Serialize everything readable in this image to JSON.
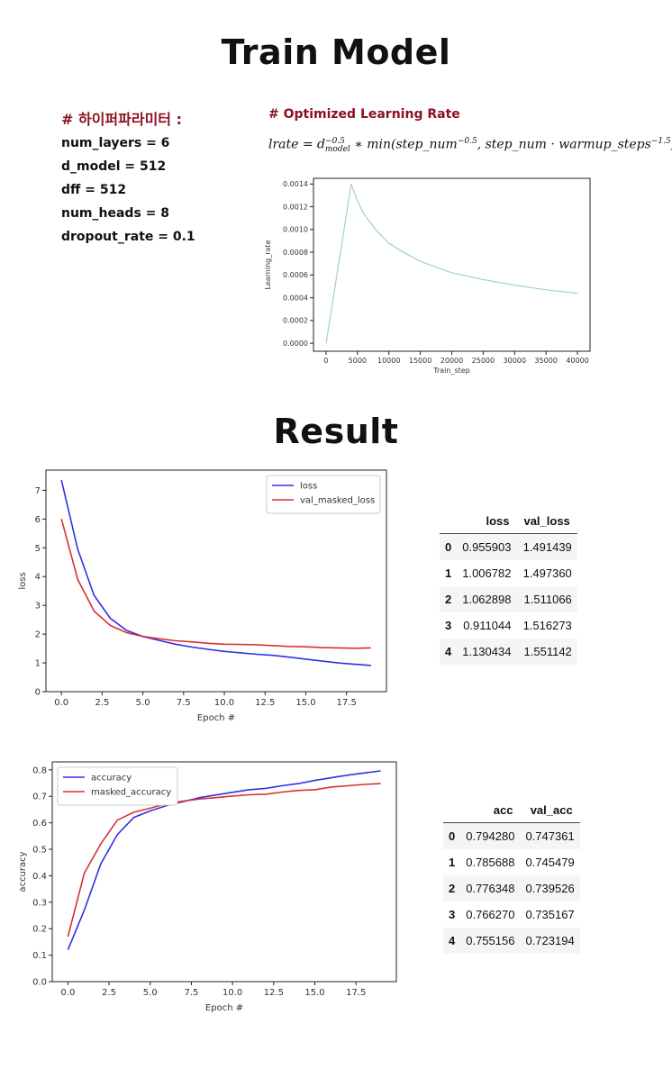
{
  "titles": {
    "train": "Train Model",
    "result": "Result"
  },
  "hyper": {
    "title": "# 하이퍼파라미터 :",
    "items": [
      "num_layers = 6",
      "d_model = 512",
      "dff = 512",
      "num_heads = 8",
      "dropout_rate = 0.1"
    ]
  },
  "lr": {
    "title": "# Optimized Learning Rate",
    "formula": {
      "lhs": "lrate = d",
      "sup1": "−0.5",
      "sub1": "model",
      "mid": " ∗ min(step_num",
      "sup2": "−0.5",
      "mid2": ", step_num · warmup_steps",
      "sup3": "−1.5",
      "end": ")"
    }
  },
  "loss_table": {
    "columns": [
      "loss",
      "val_loss"
    ],
    "rows": [
      {
        "idx": "0",
        "a": "0.955903",
        "b": "1.491439"
      },
      {
        "idx": "1",
        "a": "1.006782",
        "b": "1.497360"
      },
      {
        "idx": "2",
        "a": "1.062898",
        "b": "1.511066"
      },
      {
        "idx": "3",
        "a": "0.911044",
        "b": "1.516273"
      },
      {
        "idx": "4",
        "a": "1.130434",
        "b": "1.551142"
      }
    ]
  },
  "acc_table": {
    "columns": [
      "acc",
      "val_acc"
    ],
    "rows": [
      {
        "idx": "0",
        "a": "0.794280",
        "b": "0.747361"
      },
      {
        "idx": "1",
        "a": "0.785688",
        "b": "0.745479"
      },
      {
        "idx": "2",
        "a": "0.776348",
        "b": "0.739526"
      },
      {
        "idx": "3",
        "a": "0.766270",
        "b": "0.735167"
      },
      {
        "idx": "4",
        "a": "0.755156",
        "b": "0.723194"
      }
    ]
  },
  "colors": {
    "blue": "#3030e8",
    "red": "#d93030",
    "lr": "#9fd3c1",
    "heading": "#8b1020"
  },
  "chart_data": [
    {
      "id": "lr",
      "type": "line",
      "xlabel": "Train_step",
      "ylabel": "Learning_rate",
      "xlim": [
        -2000,
        42000
      ],
      "ylim": [
        -7e-05,
        0.00145
      ],
      "xticks": [
        0,
        5000,
        10000,
        15000,
        20000,
        25000,
        30000,
        35000,
        40000
      ],
      "xtick_labels": [
        "0",
        "5000",
        "10000",
        "15000",
        "20000",
        "25000",
        "30000",
        "35000",
        "40000"
      ],
      "yticks": [
        0,
        0.0002,
        0.0004,
        0.0006,
        0.0008,
        0.001,
        0.0012,
        0.0014
      ],
      "ytick_labels": [
        "0.0000",
        "0.0002",
        "0.0004",
        "0.0006",
        "0.0008",
        "0.0010",
        "0.0012",
        "0.0014"
      ],
      "grid": false,
      "series": [
        {
          "color": "#9fd3c1",
          "x": [
            0,
            4000,
            5000,
            6000,
            8000,
            10000,
            12000,
            15000,
            18000,
            20000,
            25000,
            30000,
            35000,
            40000
          ],
          "y": [
            0.0,
            0.0014,
            0.00125,
            0.00114,
            0.00099,
            0.00088,
            0.00081,
            0.00072,
            0.00066,
            0.00062,
            0.00056,
            0.00051,
            0.00047,
            0.00044
          ]
        }
      ]
    },
    {
      "id": "loss",
      "type": "line",
      "xlabel": "Epoch #",
      "ylabel": "loss",
      "xlim": [
        -0.95,
        19.95
      ],
      "ylim": [
        0,
        7.7
      ],
      "xticks": [
        0,
        2.5,
        5,
        7.5,
        10,
        12.5,
        15,
        17.5
      ],
      "xtick_labels": [
        "0.0",
        "2.5",
        "5.0",
        "7.5",
        "10.0",
        "12.5",
        "15.0",
        "17.5"
      ],
      "yticks": [
        0,
        1,
        2,
        3,
        4,
        5,
        6,
        7
      ],
      "ytick_labels": [
        "0",
        "1",
        "2",
        "3",
        "4",
        "5",
        "6",
        "7"
      ],
      "legend": "top-right",
      "grid": false,
      "x": [
        0,
        1,
        2,
        3,
        4,
        5,
        6,
        7,
        8,
        9,
        10,
        11,
        12,
        13,
        14,
        15,
        16,
        17,
        18,
        19
      ],
      "series": [
        {
          "name": "loss",
          "color": "#3030e8",
          "values": [
            7.35,
            4.95,
            3.35,
            2.55,
            2.13,
            1.92,
            1.78,
            1.65,
            1.55,
            1.47,
            1.4,
            1.35,
            1.3,
            1.26,
            1.2,
            1.13,
            1.06,
            1.0,
            0.95,
            0.91
          ]
        },
        {
          "name": "val_masked_loss",
          "color": "#d93030",
          "values": [
            6.0,
            3.9,
            2.8,
            2.3,
            2.05,
            1.92,
            1.84,
            1.77,
            1.73,
            1.68,
            1.65,
            1.64,
            1.63,
            1.6,
            1.57,
            1.56,
            1.53,
            1.52,
            1.51,
            1.52
          ]
        }
      ]
    },
    {
      "id": "acc",
      "type": "line",
      "xlabel": "Epoch #",
      "ylabel": "accuracy",
      "xlim": [
        -0.95,
        19.95
      ],
      "ylim": [
        0,
        0.83
      ],
      "xticks": [
        0,
        2.5,
        5,
        7.5,
        10,
        12.5,
        15,
        17.5
      ],
      "xtick_labels": [
        "0.0",
        "2.5",
        "5.0",
        "7.5",
        "10.0",
        "12.5",
        "15.0",
        "17.5"
      ],
      "yticks": [
        0,
        0.1,
        0.2,
        0.3,
        0.4,
        0.5,
        0.6,
        0.7,
        0.8
      ],
      "ytick_labels": [
        "0.0",
        "0.1",
        "0.2",
        "0.3",
        "0.4",
        "0.5",
        "0.6",
        "0.7",
        "0.8"
      ],
      "legend": "top-left",
      "grid": false,
      "x": [
        0,
        1,
        2,
        3,
        4,
        5,
        6,
        7,
        8,
        9,
        10,
        11,
        12,
        13,
        14,
        15,
        16,
        17,
        18,
        19
      ],
      "series": [
        {
          "name": "accuracy",
          "color": "#3030e8",
          "values": [
            0.12,
            0.27,
            0.445,
            0.555,
            0.62,
            0.645,
            0.665,
            0.68,
            0.695,
            0.705,
            0.715,
            0.725,
            0.73,
            0.74,
            0.748,
            0.76,
            0.77,
            0.78,
            0.788,
            0.796
          ]
        },
        {
          "name": "masked_accuracy",
          "color": "#d93030",
          "values": [
            0.17,
            0.41,
            0.52,
            0.61,
            0.64,
            0.655,
            0.672,
            0.682,
            0.69,
            0.695,
            0.701,
            0.706,
            0.708,
            0.716,
            0.722,
            0.725,
            0.735,
            0.74,
            0.745,
            0.748
          ]
        }
      ]
    }
  ]
}
